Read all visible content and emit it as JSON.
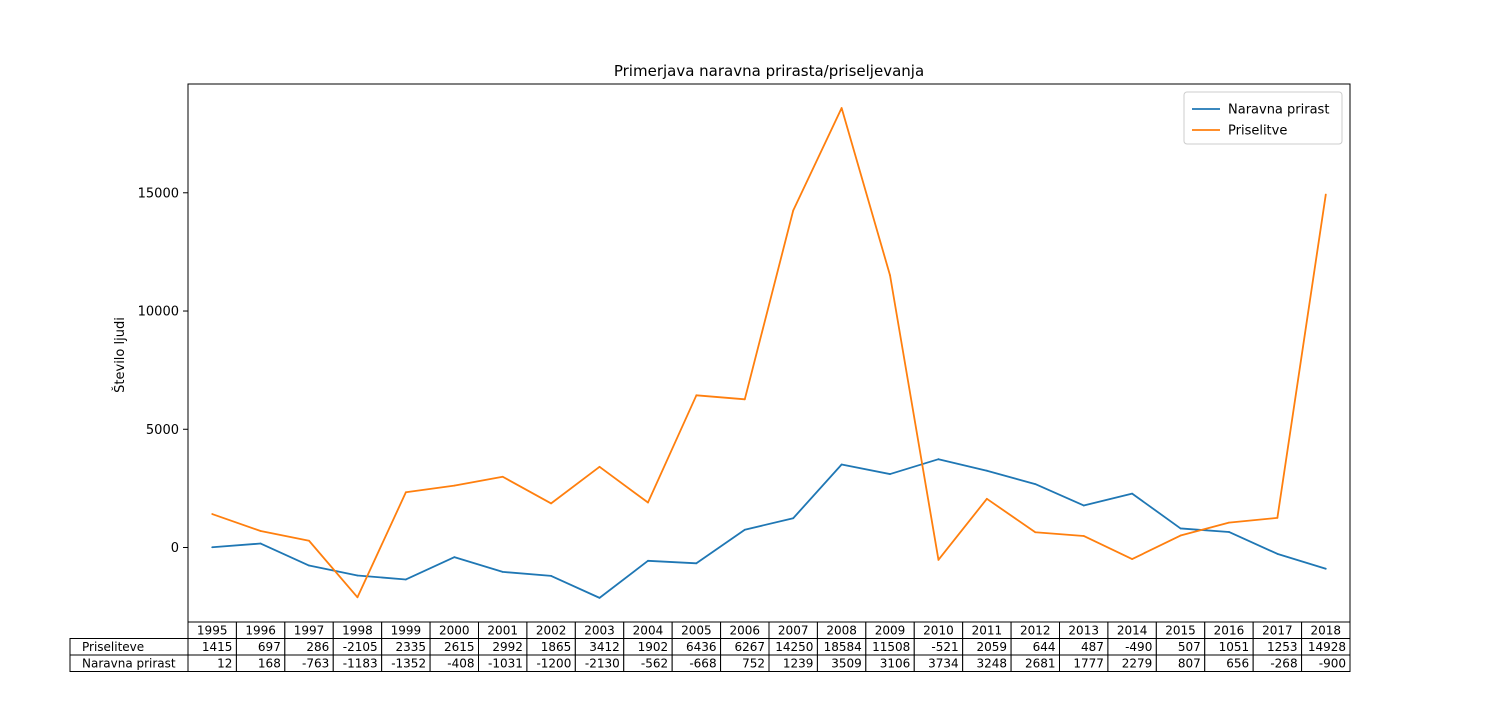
{
  "chart_data": {
    "type": "line",
    "title": "Primerjava naravna prirasta/priseljevanja",
    "xlabel": "",
    "ylabel": "Število ljudi",
    "x": [
      "1995",
      "1996",
      "1997",
      "1998",
      "1999",
      "2000",
      "2001",
      "2002",
      "2003",
      "2004",
      "2005",
      "2006",
      "2007",
      "2008",
      "2009",
      "2010",
      "2011",
      "2012",
      "2013",
      "2014",
      "2015",
      "2016",
      "2017",
      "2018"
    ],
    "series": [
      {
        "name": "Naravna prirast",
        "color": "#1f77b4",
        "values": [
          12,
          168,
          -763,
          -1183,
          -1352,
          -408,
          -1031,
          -1200,
          -2130,
          -562,
          -668,
          752,
          1239,
          3509,
          3106,
          3734,
          3248,
          2681,
          1777,
          2279,
          807,
          656,
          -268,
          -900
        ]
      },
      {
        "name": "Priselitve",
        "color": "#ff7f0e",
        "values": [
          1415,
          697,
          286,
          -2105,
          2335,
          2615,
          2992,
          1865,
          3412,
          1902,
          6436,
          6267,
          14250,
          18584,
          11508,
          -521,
          2059,
          644,
          487,
          -490,
          507,
          1051,
          1253,
          14928
        ]
      }
    ],
    "yticks": [
      0,
      5000,
      10000,
      15000
    ],
    "ylim": [
      -3150,
      19600
    ],
    "legend": {
      "position": "top-right",
      "labels": [
        "Naravna prirast",
        "Priselitve"
      ]
    },
    "grid": false,
    "table": {
      "row_labels": [
        "Priseliteve",
        "Naravna prirast"
      ],
      "row_series_index": [
        1,
        0
      ]
    }
  }
}
